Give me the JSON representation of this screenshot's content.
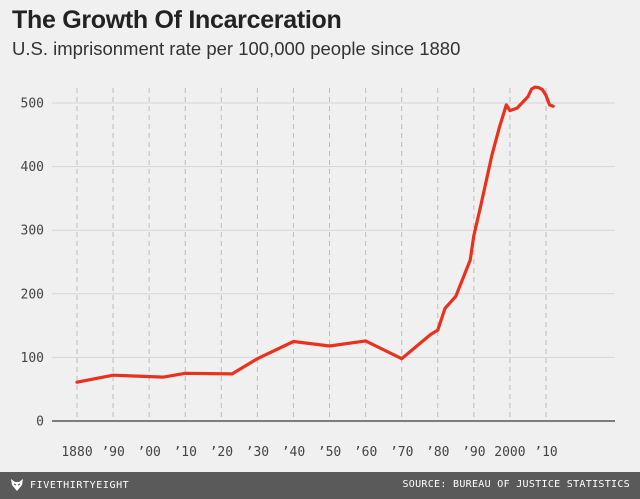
{
  "chart_data": {
    "type": "line",
    "title": "The Growth Of Incarceration",
    "subtitle": "U.S. imprisonment rate per 100,000 people since 1880",
    "xlabel": "",
    "ylabel": "",
    "xlim": [
      1880,
      2013
    ],
    "ylim": [
      0,
      530
    ],
    "yticks": [
      0,
      100,
      200,
      300,
      400,
      500
    ],
    "ytick_labels": [
      "0",
      "100",
      "200",
      "300",
      "400",
      "500"
    ],
    "xticks": [
      1880,
      1890,
      1900,
      1910,
      1920,
      1930,
      1940,
      1950,
      1960,
      1970,
      1980,
      1990,
      2000,
      2010
    ],
    "xtick_labels": [
      "1880",
      "’90",
      "’00",
      "’10",
      "’20",
      "’30",
      "’40",
      "’50",
      "’60",
      "’70",
      "’80",
      "’90",
      "2000",
      "’10"
    ],
    "grid": "vertical dashed at x ticks, horizontal solid at y ticks",
    "series": [
      {
        "color": "#e8321e",
        "x": [
          1880,
          1890,
          1904,
          1910,
          1923,
          1930,
          1940,
          1950,
          1960,
          1970,
          1978,
          1980,
          1982,
          1985,
          1989,
          1990,
          1992,
          1995,
          1997,
          1999,
          2000,
          2002,
          2005,
          2006,
          2007,
          2008,
          2009,
          2010,
          2011,
          2012
        ],
        "y": [
          61,
          72,
          69,
          75,
          74,
          98,
          125,
          118,
          126,
          98,
          136,
          143,
          177,
          196,
          253,
          291,
          341,
          418,
          460,
          497,
          488,
          492,
          510,
          522,
          525,
          524,
          521,
          512,
          497,
          495
        ]
      }
    ]
  },
  "footer": {
    "brand": "FIVETHIRTYEIGHT",
    "source": "SOURCE: BUREAU OF JUSTICE STATISTICS"
  },
  "colors": {
    "line": "#e8321e",
    "background": "#f0f0f0",
    "footer": "#5a5a5a"
  }
}
